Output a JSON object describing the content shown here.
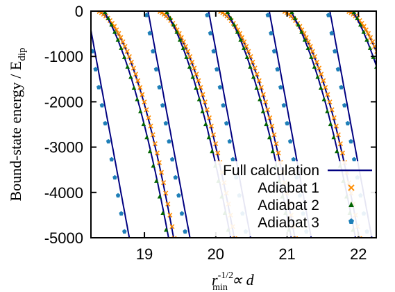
{
  "chart_data": {
    "type": "line",
    "xlabel": "r_min^-1/2 ∝ d",
    "ylabel": "Bound-state energy / E_dip",
    "xlim": [
      18.25,
      22.25
    ],
    "ylim": [
      -5000,
      0
    ],
    "xticks": [
      19,
      20,
      21,
      22
    ],
    "yticks": [
      0,
      -1000,
      -2000,
      -3000,
      -4000,
      -5000
    ],
    "xtick_labels": [
      "19",
      "20",
      "21",
      "22"
    ],
    "ytick_labels": [
      "0",
      "-1000",
      "-2000",
      "-3000",
      "-4000",
      "-5000"
    ],
    "legend_position": "bottom-right",
    "grid": false,
    "series": [
      {
        "name": "Full calculation",
        "style": "line",
        "color": "#000080"
      },
      {
        "name": "Adiabat 1",
        "style": "cross-marker",
        "color": "#ff8c00"
      },
      {
        "name": "Adiabat 2",
        "style": "triangle-marker",
        "color": "#006400"
      },
      {
        "name": "Adiabat 3",
        "style": "pentagon-marker",
        "color": "#1e7fb8"
      }
    ],
    "family1_shifts": [
      18.35,
      19.2,
      20.05,
      20.95,
      21.85
    ],
    "family1_coefficients": [
      0,
      -700,
      -3800
    ],
    "family2_shifts": [
      18.43,
      19.3,
      20.15,
      21.05,
      21.92
    ],
    "family2_coefficients": [
      0,
      -2600,
      -3200
    ],
    "family3_shifts": [
      18.2,
      19.05,
      19.9,
      20.75,
      21.6
    ],
    "family3_coefficients": [
      0,
      -8500
    ]
  },
  "legend": {
    "full": "Full calculation",
    "a1": "Adiabat 1",
    "a2": "Adiabat 2",
    "a3": "Adiabat 3"
  },
  "axes": {
    "ylabel_main": "Bound-state energy / E",
    "ylabel_sub": "dip",
    "xlabel_r": "r",
    "xlabel_sup": "-1/2",
    "xlabel_sub": "min",
    "xlabel_tail": " ∝ d"
  }
}
